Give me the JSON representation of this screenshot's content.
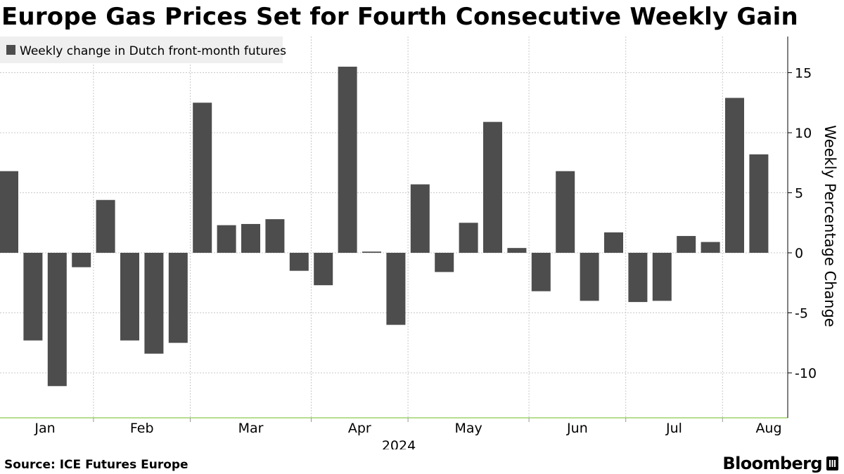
{
  "header": {
    "title": "Europe Gas Prices Set for Fourth Consecutive Weekly Gain"
  },
  "footer": {
    "source": "Source: ICE Futures Europe",
    "brand": "Bloomberg"
  },
  "colors": {
    "bar": "#4d4d4d",
    "grid": "#c8c8c8",
    "baseline": "#9fd36a",
    "legend_bg": "#efefef"
  },
  "chart_data": {
    "type": "bar",
    "title": "Europe Gas Prices Set for Fourth Consecutive Weekly Gain",
    "legend": "Weekly change in Dutch front-month futures",
    "ylabel": "Weekly Percentage Change",
    "xlabel": "2024",
    "ylim": [
      -13.5,
      18
    ],
    "yticks": [
      15,
      10,
      5,
      0,
      -5,
      -10
    ],
    "month_labels": [
      "Jan",
      "Feb",
      "Mar",
      "Apr",
      "May",
      "Jun",
      "Jul",
      "Aug"
    ],
    "series": [
      {
        "name": "Weekly change in Dutch front-month futures",
        "values": [
          6.8,
          -7.3,
          -11.1,
          -1.2,
          4.4,
          -7.3,
          -8.4,
          -7.5,
          12.5,
          2.3,
          2.4,
          2.8,
          -1.5,
          -2.7,
          15.5,
          0.1,
          -6.0,
          5.7,
          -1.6,
          2.5,
          10.9,
          0.4,
          -3.2,
          6.8,
          -4.0,
          1.7,
          -4.1,
          -4.0,
          1.4,
          0.9,
          12.9,
          8.2
        ]
      }
    ]
  }
}
